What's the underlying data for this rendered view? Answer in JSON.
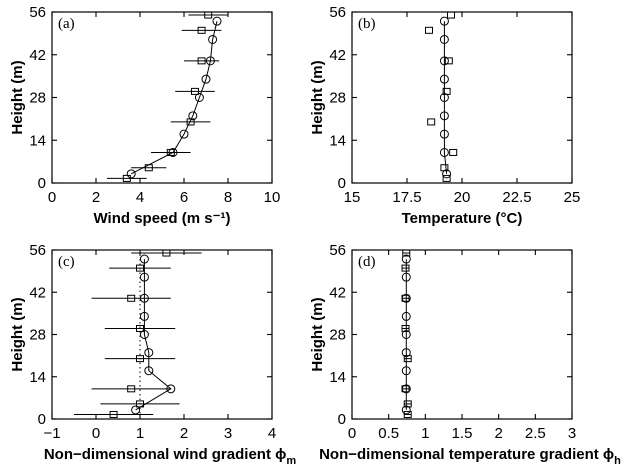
{
  "chart_data": [
    {
      "type": "scatter",
      "panel": "(a)",
      "xlabel": "Wind speed (m s⁻¹)",
      "ylabel": "Height (m)",
      "xlim": [
        0,
        10
      ],
      "ylim": [
        0,
        56
      ],
      "xticks": [
        0,
        2,
        4,
        6,
        8,
        10
      ],
      "yticks": [
        0,
        14,
        28,
        42,
        56
      ],
      "series": [
        {
          "marker": "circle",
          "connected": true,
          "points": [
            {
              "x": 3.6,
              "y": 3
            },
            {
              "x": 5.5,
              "y": 10
            },
            {
              "x": 6.0,
              "y": 16
            },
            {
              "x": 6.4,
              "y": 22
            },
            {
              "x": 6.7,
              "y": 28
            },
            {
              "x": 7.0,
              "y": 34
            },
            {
              "x": 7.2,
              "y": 40
            },
            {
              "x": 7.3,
              "y": 47
            },
            {
              "x": 7.5,
              "y": 53
            }
          ]
        },
        {
          "marker": "square",
          "connected": false,
          "points": [
            {
              "x": 3.4,
              "y": 1.5,
              "xerr": 0.9
            },
            {
              "x": 4.4,
              "y": 5,
              "xerr": 0.8
            },
            {
              "x": 5.4,
              "y": 10,
              "xerr": 0.9
            },
            {
              "x": 6.3,
              "y": 20,
              "xerr": 0.9
            },
            {
              "x": 6.5,
              "y": 30,
              "xerr": 0.9
            },
            {
              "x": 6.8,
              "y": 40,
              "xerr": 0.8
            },
            {
              "x": 6.8,
              "y": 50,
              "xerr": 0.9
            },
            {
              "x": 7.1,
              "y": 55,
              "xerr": 0.9
            }
          ]
        }
      ]
    },
    {
      "type": "scatter",
      "panel": "(b)",
      "xlabel": "Temperature (°C)",
      "ylabel": "Height (m)",
      "xlim": [
        15,
        25
      ],
      "ylim": [
        0,
        56
      ],
      "xticks": [
        15,
        17.5,
        20,
        22.5,
        25
      ],
      "yticks": [
        0,
        14,
        28,
        42,
        56
      ],
      "series": [
        {
          "marker": "circle",
          "connected": true,
          "points": [
            {
              "x": 19.3,
              "y": 3
            },
            {
              "x": 19.2,
              "y": 10
            },
            {
              "x": 19.2,
              "y": 16
            },
            {
              "x": 19.2,
              "y": 22
            },
            {
              "x": 19.2,
              "y": 28
            },
            {
              "x": 19.2,
              "y": 34
            },
            {
              "x": 19.2,
              "y": 40
            },
            {
              "x": 19.2,
              "y": 47
            },
            {
              "x": 19.2,
              "y": 53
            }
          ]
        },
        {
          "marker": "square",
          "connected": false,
          "points": [
            {
              "x": 19.3,
              "y": 1.5
            },
            {
              "x": 19.2,
              "y": 5
            },
            {
              "x": 19.6,
              "y": 10
            },
            {
              "x": 18.6,
              "y": 20
            },
            {
              "x": 19.3,
              "y": 30
            },
            {
              "x": 19.4,
              "y": 40
            },
            {
              "x": 18.5,
              "y": 50
            },
            {
              "x": 19.5,
              "y": 55
            }
          ]
        }
      ]
    },
    {
      "type": "scatter",
      "panel": "(c)",
      "xlabel": "Non−dimensional wind gradient ϕ",
      "xlabel_sub": "m",
      "ylabel": "Height (m)",
      "xlim": [
        -1,
        4
      ],
      "ylim": [
        0,
        56
      ],
      "xticks": [
        -1,
        0,
        1,
        2,
        3,
        4
      ],
      "yticks": [
        0,
        14,
        28,
        42,
        56
      ],
      "reference_x": 1,
      "series": [
        {
          "marker": "circle",
          "connected": true,
          "points": [
            {
              "x": 0.9,
              "y": 3
            },
            {
              "x": 1.7,
              "y": 10
            },
            {
              "x": 1.2,
              "y": 16
            },
            {
              "x": 1.2,
              "y": 22
            },
            {
              "x": 1.1,
              "y": 28
            },
            {
              "x": 1.1,
              "y": 34
            },
            {
              "x": 1.1,
              "y": 40
            },
            {
              "x": 1.1,
              "y": 47
            },
            {
              "x": 1.1,
              "y": 53
            }
          ]
        },
        {
          "marker": "square",
          "connected": false,
          "points": [
            {
              "x": 0.4,
              "y": 1.5,
              "xerr": 0.9
            },
            {
              "x": 1.0,
              "y": 5,
              "xerr": 0.9
            },
            {
              "x": 0.8,
              "y": 10,
              "xerr": 0.9
            },
            {
              "x": 1.0,
              "y": 20,
              "xerr": 0.8
            },
            {
              "x": 1.0,
              "y": 30,
              "xerr": 0.8
            },
            {
              "x": 0.8,
              "y": 40,
              "xerr": 0.9
            },
            {
              "x": 1.0,
              "y": 50,
              "xerr": 0.7
            },
            {
              "x": 1.6,
              "y": 55,
              "xerr": 0.8
            }
          ]
        }
      ]
    },
    {
      "type": "scatter",
      "panel": "(d)",
      "xlabel": "Non−dimensional temperature gradient ϕ",
      "xlabel_sub": "h",
      "ylabel": "Height (m)",
      "xlim": [
        0,
        3
      ],
      "ylim": [
        0,
        56
      ],
      "xticks": [
        0,
        0.5,
        1,
        1.5,
        2,
        2.5,
        3
      ],
      "yticks": [
        0,
        14,
        28,
        42,
        56
      ],
      "series": [
        {
          "marker": "circle",
          "connected": true,
          "points": [
            {
              "x": 0.74,
              "y": 3
            },
            {
              "x": 0.74,
              "y": 10
            },
            {
              "x": 0.74,
              "y": 16
            },
            {
              "x": 0.74,
              "y": 22
            },
            {
              "x": 0.74,
              "y": 28
            },
            {
              "x": 0.74,
              "y": 34
            },
            {
              "x": 0.74,
              "y": 40
            },
            {
              "x": 0.74,
              "y": 47
            },
            {
              "x": 0.74,
              "y": 53
            }
          ]
        },
        {
          "marker": "square",
          "connected": false,
          "points": [
            {
              "x": 0.76,
              "y": 1.5,
              "xerr": 0.05
            },
            {
              "x": 0.76,
              "y": 5,
              "xerr": 0.05
            },
            {
              "x": 0.73,
              "y": 10,
              "xerr": 0.05
            },
            {
              "x": 0.76,
              "y": 20,
              "xerr": 0.05
            },
            {
              "x": 0.73,
              "y": 30,
              "xerr": 0.05
            },
            {
              "x": 0.73,
              "y": 40,
              "xerr": 0.05
            },
            {
              "x": 0.73,
              "y": 50,
              "xerr": 0.05
            },
            {
              "x": 0.74,
              "y": 55,
              "xerr": 0.05
            }
          ]
        }
      ]
    }
  ]
}
